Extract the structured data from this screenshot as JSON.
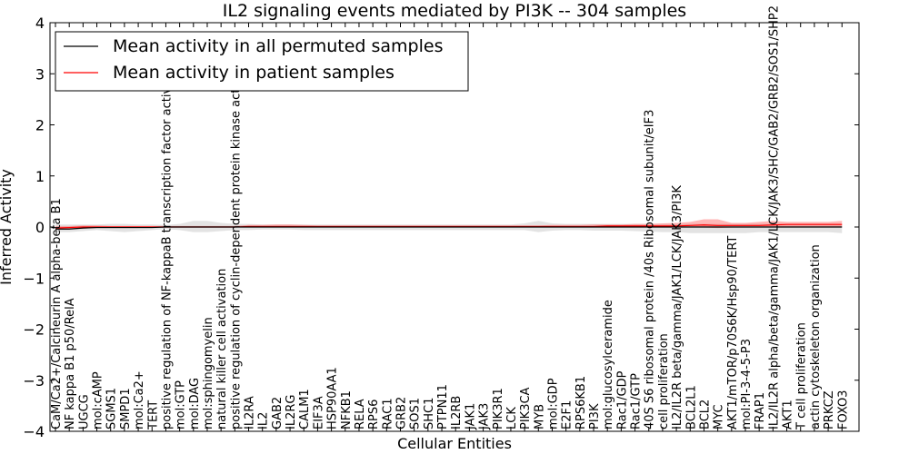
{
  "chart_data": {
    "type": "line",
    "title": "IL2 signaling events mediated by PI3K -- 304 samples",
    "xlabel": "Cellular Entities",
    "ylabel": "Inferred Activity",
    "ylim": [
      -4,
      4
    ],
    "yticks": [
      "−4",
      "−3",
      "−2",
      "−1",
      "0",
      "1",
      "2",
      "3",
      "4"
    ],
    "ytick_values": [
      -4,
      -3,
      -2,
      -1,
      0,
      1,
      2,
      3,
      4
    ],
    "legend": {
      "placement": "top-left",
      "entries": [
        {
          "label": "Mean activity in all permuted samples",
          "color": "#000000"
        },
        {
          "label": "Mean activity in patient samples",
          "color": "#ff0000"
        }
      ]
    },
    "categories": [
      "CaM/Ca2+/Calcineurin A alpha-beta B1",
      "NF kappa B1 p50/RelA",
      "UGCG",
      "mol:cAMP",
      "SGMS1",
      "SMPD1",
      "mol:Ca2+",
      "TERT",
      "positive regulation of NF-kappaB transcription factor activity",
      "mol:GTP",
      "mol:DAG",
      "mol:sphingomyelin",
      "natural killer cell activation",
      "positive regulation of cyclin-dependent protein kinase activity",
      "IL2RA",
      "IL2",
      "GAB2",
      "IL2RG",
      "CALM1",
      "EIF3A",
      "HSP90AA1",
      "NFKB1",
      "RELA",
      "RPS6",
      "RAC1",
      "GRB2",
      "SOS1",
      "SHC1",
      "PTPN11",
      "IL2RB",
      "JAK1",
      "JAK3",
      "PIK3R1",
      "LCK",
      "PIK3CA",
      "MYB",
      "mol:GDP",
      "E2F1",
      "RPS6KB1",
      "PI3K",
      "mol:glucosylceramide",
      "Rac1/GDP",
      "Rac1/GTP",
      "40S S6 ribosomal protein /40s Ribosomal subunit/eIF3",
      "cell proliferation",
      "IL2/IL2R beta/gamma/JAK1/LCK/JAK3/PI3K",
      "BCL2L1",
      "BCL2",
      "MYC",
      "AKT1/mTOR/p70S6K/Hsp90/TERT",
      "mol:PI-3-4-5-P3",
      "FRAP1",
      "IL2/IL2R alpha/beta/gamma/JAK1/LCK/JAK3/SHC/GAB2/GRB2/SOS1/SHP2",
      "AKT1",
      "T cell proliferation",
      "actin cytoskeleton organization",
      "PRKCZ",
      "FOXO3"
    ],
    "series": [
      {
        "name": "Mean activity in all permuted samples",
        "color": "#000000",
        "values": [
          -0.04,
          -0.04,
          -0.02,
          -0.01,
          -0.01,
          -0.01,
          -0.01,
          -0.01,
          0,
          0,
          0,
          0,
          0,
          0,
          0,
          0,
          0,
          0,
          0,
          0,
          0,
          0,
          0,
          0,
          0,
          0,
          0,
          0,
          0,
          0,
          0,
          0,
          0,
          0,
          0,
          0,
          0,
          0,
          0,
          0,
          0,
          0,
          0,
          0,
          0,
          0,
          0,
          0,
          0,
          0,
          0,
          0,
          0,
          0,
          0,
          0,
          0,
          0
        ],
        "band_lower": [
          -0.1,
          -0.1,
          -0.08,
          -0.06,
          -0.08,
          -0.1,
          -0.08,
          -0.06,
          -0.04,
          -0.06,
          -0.1,
          -0.1,
          -0.08,
          -0.06,
          -0.06,
          -0.05,
          -0.05,
          -0.05,
          -0.06,
          -0.06,
          -0.06,
          -0.06,
          -0.06,
          -0.06,
          -0.06,
          -0.06,
          -0.06,
          -0.06,
          -0.06,
          -0.06,
          -0.06,
          -0.06,
          -0.06,
          -0.06,
          -0.06,
          -0.1,
          -0.07,
          -0.06,
          -0.06,
          -0.07,
          -0.07,
          -0.07,
          -0.08,
          -0.09,
          -0.1,
          -0.1,
          -0.12,
          -0.12,
          -0.12,
          -0.12,
          -0.12,
          -0.1,
          -0.1,
          -0.1,
          -0.1,
          -0.1,
          -0.1,
          -0.12
        ],
        "band_upper": [
          0.05,
          0.05,
          0.05,
          0.05,
          0.06,
          0.06,
          0.05,
          0.05,
          0.04,
          0.06,
          0.12,
          0.12,
          0.08,
          0.06,
          0.06,
          0.05,
          0.05,
          0.05,
          0.05,
          0.05,
          0.05,
          0.05,
          0.05,
          0.05,
          0.05,
          0.05,
          0.05,
          0.05,
          0.05,
          0.05,
          0.05,
          0.05,
          0.05,
          0.05,
          0.07,
          0.12,
          0.07,
          0.06,
          0.06,
          0.06,
          0.06,
          0.06,
          0.06,
          0.06,
          0.06,
          0.06,
          0.06,
          0.06,
          0.06,
          0.06,
          0.06,
          0.06,
          0.06,
          0.06,
          0.06,
          0.06,
          0.06,
          0.06
        ]
      },
      {
        "name": "Mean activity in patient samples",
        "color": "#ff0000",
        "values": [
          -0.02,
          -0.01,
          0,
          0,
          0,
          0,
          0,
          0,
          0,
          0,
          0,
          0,
          0,
          0,
          0.01,
          0.01,
          0.01,
          0.01,
          0.01,
          0.01,
          0.01,
          0.01,
          0.01,
          0.01,
          0.01,
          0.01,
          0.01,
          0.01,
          0.01,
          0.01,
          0.01,
          0.01,
          0.01,
          0.01,
          0.01,
          0.01,
          0.01,
          0.01,
          0.01,
          0.01,
          0.02,
          0.02,
          0.02,
          0.02,
          0.02,
          0.02,
          0.03,
          0.04,
          0.03,
          0.03,
          0.03,
          0.03,
          0.04,
          0.05,
          0.05,
          0.05,
          0.05,
          0.05
        ],
        "band_lower": [
          -0.05,
          -0.04,
          -0.03,
          -0.02,
          -0.02,
          -0.02,
          -0.02,
          -0.01,
          -0.01,
          -0.01,
          -0.01,
          -0.01,
          -0.01,
          -0.01,
          -0.01,
          -0.01,
          -0.01,
          -0.01,
          -0.01,
          -0.01,
          -0.01,
          -0.01,
          -0.01,
          -0.01,
          -0.01,
          -0.01,
          -0.01,
          -0.01,
          -0.01,
          -0.01,
          -0.01,
          -0.01,
          -0.01,
          -0.01,
          -0.01,
          -0.01,
          -0.01,
          -0.01,
          -0.01,
          -0.01,
          -0.01,
          -0.01,
          -0.01,
          -0.01,
          -0.01,
          -0.01,
          -0.01,
          -0.01,
          -0.02,
          -0.01,
          -0.01,
          -0.01,
          0,
          0,
          0,
          0,
          0,
          0
        ],
        "band_upper": [
          0.02,
          0.02,
          0.03,
          0.03,
          0.02,
          0.02,
          0.02,
          0.02,
          0.02,
          0.02,
          0.02,
          0.02,
          0.02,
          0.02,
          0.04,
          0.04,
          0.05,
          0.05,
          0.04,
          0.03,
          0.03,
          0.03,
          0.03,
          0.03,
          0.03,
          0.03,
          0.03,
          0.03,
          0.03,
          0.03,
          0.03,
          0.03,
          0.03,
          0.03,
          0.03,
          0.03,
          0.04,
          0.04,
          0.04,
          0.05,
          0.05,
          0.05,
          0.06,
          0.06,
          0.07,
          0.08,
          0.1,
          0.15,
          0.15,
          0.08,
          0.08,
          0.1,
          0.12,
          0.1,
          0.1,
          0.1,
          0.1,
          0.12
        ]
      }
    ]
  }
}
